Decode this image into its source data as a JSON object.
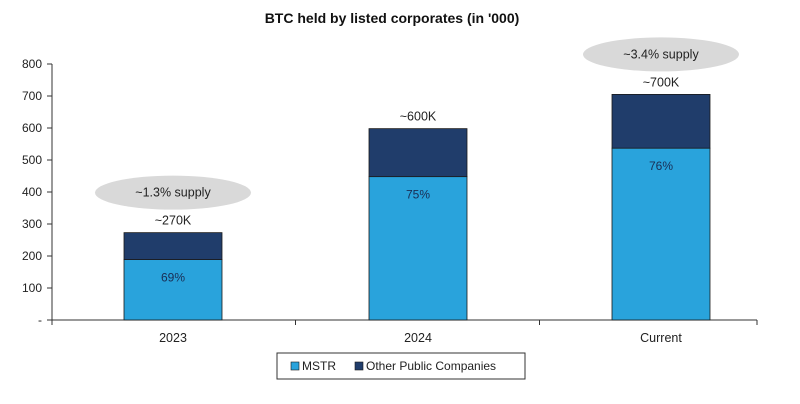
{
  "chart_data": {
    "type": "bar",
    "stacked": true,
    "title": "BTC held by listed corporates (in '000)",
    "categories": [
      "2023",
      "2024",
      "Current"
    ],
    "series": [
      {
        "name": "MSTR",
        "values": [
          189,
          448,
          537
        ],
        "color": "#29a3dc"
      },
      {
        "name": "Other Public Companies",
        "values": [
          84,
          150,
          168
        ],
        "color": "#203d6b"
      }
    ],
    "totals_labels": [
      "~270K",
      "~600K",
      "~700K"
    ],
    "share_labels": [
      "69%",
      "75%",
      "76%"
    ],
    "supply_labels": [
      "~1.3% supply",
      "",
      "~3.4% supply"
    ],
    "supply_bubble_color": "#d9d9d9",
    "ylim": [
      0,
      800
    ],
    "yticks": [
      0,
      100,
      200,
      300,
      400,
      500,
      600,
      700,
      800
    ],
    "ytick_labels": [
      "-",
      "100",
      "200",
      "300",
      "400",
      "500",
      "600",
      "700",
      "800"
    ],
    "xlabel": "",
    "ylabel": "",
    "grid": false,
    "legend_position": "bottom"
  }
}
